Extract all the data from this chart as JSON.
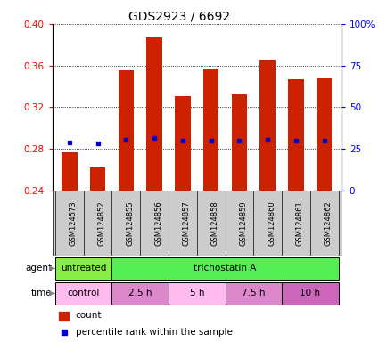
{
  "title": "GDS2923 / 6692",
  "samples": [
    "GSM124573",
    "GSM124852",
    "GSM124855",
    "GSM124856",
    "GSM124857",
    "GSM124858",
    "GSM124859",
    "GSM124860",
    "GSM124861",
    "GSM124862"
  ],
  "bar_bottoms": [
    0.24,
    0.24,
    0.24,
    0.24,
    0.24,
    0.24,
    0.24,
    0.24,
    0.24,
    0.24
  ],
  "bar_tops": [
    0.277,
    0.262,
    0.355,
    0.387,
    0.331,
    0.357,
    0.332,
    0.366,
    0.347,
    0.348
  ],
  "percentile_vals": [
    0.286,
    0.285,
    0.289,
    0.29,
    0.288,
    0.288,
    0.288,
    0.289,
    0.288,
    0.288
  ],
  "ylim_left": [
    0.24,
    0.4
  ],
  "ylim_right": [
    0,
    100
  ],
  "yticks_left": [
    0.24,
    0.28,
    0.32,
    0.36,
    0.4
  ],
  "yticks_right": [
    0,
    25,
    50,
    75,
    100
  ],
  "ytick_labels_right": [
    "0",
    "25",
    "50",
    "75",
    "100%"
  ],
  "bar_color": "#cc2200",
  "percentile_color": "#0000cc",
  "agent_color_untreated": "#88ee44",
  "agent_color_trichostatin": "#55ee55",
  "time_color_control": "#ffbbee",
  "time_color_alt1": "#dd88cc",
  "time_color_alt2": "#ee99dd",
  "time_color_alt3": "#cc66bb",
  "tick_label_bg": "#cccccc",
  "tick_label_fontsize": 6.0,
  "bar_width": 0.55
}
